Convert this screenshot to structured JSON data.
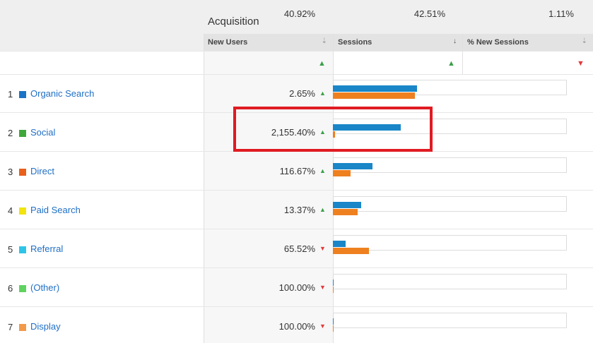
{
  "section_title": "Acquisition",
  "columns": {
    "new_users": "New Users",
    "sessions": "Sessions",
    "pct_new_sessions": "% New Sessions"
  },
  "totals": {
    "new_users": "40.92%",
    "new_users_trend": "up",
    "sessions": "42.51%",
    "sessions_trend": "up",
    "pct_new_sessions": "1.11%",
    "pct_new_sessions_trend": "down"
  },
  "rows": [
    {
      "index": "1",
      "channel": "Organic Search",
      "color": "#1a73c6",
      "new_users": "2.65%",
      "trend": "up"
    },
    {
      "index": "2",
      "channel": "Social",
      "color": "#3fa83a",
      "new_users": "2,155.40%",
      "trend": "up"
    },
    {
      "index": "3",
      "channel": "Direct",
      "color": "#e8601c",
      "new_users": "116.67%",
      "trend": "up"
    },
    {
      "index": "4",
      "channel": "Paid Search",
      "color": "#f2e40c",
      "new_users": "13.37%",
      "trend": "up"
    },
    {
      "index": "5",
      "channel": "Referral",
      "color": "#2ec4e8",
      "new_users": "65.52%",
      "trend": "down"
    },
    {
      "index": "6",
      "channel": "(Other)",
      "color": "#5fd35f",
      "new_users": "100.00%",
      "trend": "down"
    },
    {
      "index": "7",
      "channel": "Display",
      "color": "#f29a4a",
      "new_users": "100.00%",
      "trend": "down"
    }
  ],
  "sessions_bars": {
    "series": [
      {
        "name": "current",
        "color": "#1a86c8"
      },
      {
        "name": "previous",
        "color": "#ee8020"
      }
    ],
    "values": [
      {
        "current": 0.36,
        "previous": 0.35
      },
      {
        "current": 0.29,
        "previous": 0.01
      },
      {
        "current": 0.17,
        "previous": 0.075
      },
      {
        "current": 0.12,
        "previous": 0.105
      },
      {
        "current": 0.055,
        "previous": 0.155
      },
      {
        "current": 0.003,
        "previous": 0.003
      },
      {
        "current": 0.003,
        "previous": 0.003
      }
    ]
  },
  "icons": {
    "sort_inactive": "⇣",
    "sort_active": "↓",
    "up_arrow": "▲",
    "down_arrow": "▼"
  }
}
